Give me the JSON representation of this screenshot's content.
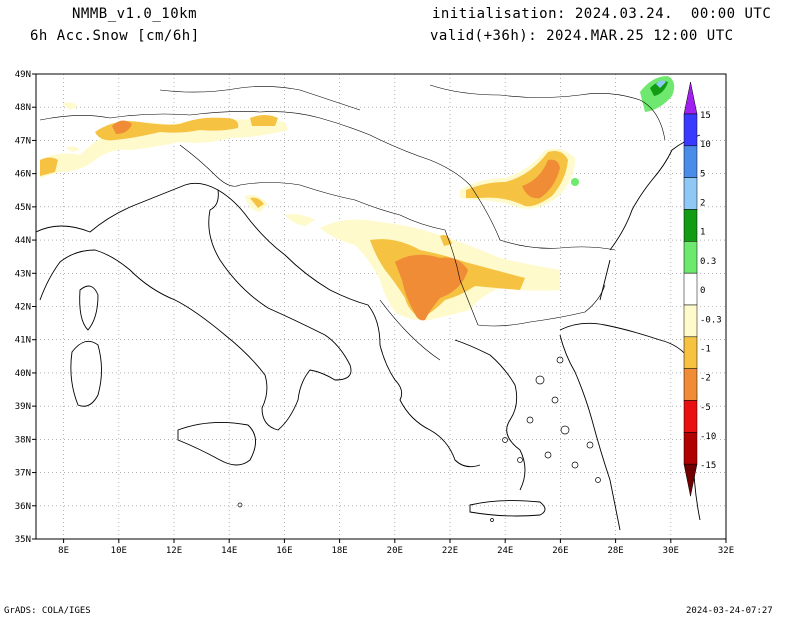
{
  "header": {
    "model": "NMMB_v1.0_10km",
    "field": "6h Acc.Snow [cm/6h]",
    "init": "initialisation: 2024.03.24.  00:00 UTC",
    "valid": "valid(+36h): 2024.MAR.25 12:00 UTC"
  },
  "footer": {
    "credit": "GrADS: COLA/IGES",
    "timestamp": "2024-03-24-07:27"
  },
  "axes": {
    "lon_labels": [
      "8E",
      "10E",
      "12E",
      "14E",
      "16E",
      "18E",
      "20E",
      "22E",
      "24E",
      "26E",
      "28E",
      "30E",
      "32E"
    ],
    "lat_labels": [
      "49N",
      "48N",
      "47N",
      "46N",
      "45N",
      "44N",
      "43N",
      "42N",
      "41N",
      "40N",
      "39N",
      "38N",
      "37N",
      "36N",
      "35N"
    ]
  },
  "colorbar": {
    "labels": [
      "15",
      "10",
      "5",
      "2",
      "1",
      "0.3",
      "0",
      "-0.3",
      "-1",
      "-2",
      "-5",
      "-10",
      "-15"
    ],
    "colors": [
      "#a020f0",
      "#3a3aff",
      "#4a8ce8",
      "#8fc7f5",
      "#129c12",
      "#6ee86e",
      "#ffffff",
      "#fffacc",
      "#f5c242",
      "#f08c36",
      "#e81010",
      "#b00000",
      "#700000"
    ]
  }
}
